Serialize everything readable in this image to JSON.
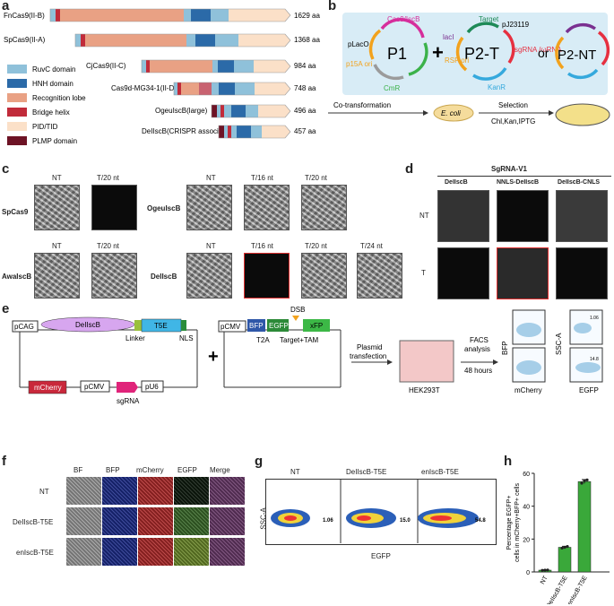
{
  "panels": {
    "a": "a",
    "b": "b",
    "c": "c",
    "d": "d",
    "e": "e",
    "f": "f",
    "g": "g",
    "h": "h"
  },
  "panel_a": {
    "proteins": [
      {
        "name": "FnCas9(II-B)",
        "length": "1629 aa"
      },
      {
        "name": "SpCas9(II-A)",
        "length": "1368 aa"
      },
      {
        "name": "CjCas9(II-C)",
        "length": "984 aa"
      },
      {
        "name": "Cas9d-MG34-1(II-D)",
        "length": "748 aa"
      },
      {
        "name": "OgeuIscB(large)",
        "length": "496 aa"
      },
      {
        "name": "DeIIscB(CRISPR associted)",
        "length": "457 aa"
      }
    ],
    "legend": [
      {
        "label": "RuvC domain",
        "color": "#8fc1da"
      },
      {
        "label": "HNH domain",
        "color": "#2b6aa8"
      },
      {
        "label": "Recognition lobe",
        "color": "#e9a184"
      },
      {
        "label": "Bridge helix",
        "color": "#c12b3a"
      },
      {
        "label": "PID/TID",
        "color": "#fbe0c8"
      },
      {
        "label": "PLMP domain",
        "color": "#6d1325"
      }
    ]
  },
  "panel_b": {
    "p1": "P1",
    "p2t": "P2-T",
    "p2nt": "P2-NT",
    "plus": "+",
    "or": "or",
    "plac": "pLacO",
    "cas9": "Cas9/IscB",
    "p15a": "p15A\nori",
    "cmr": "CmR",
    "laci": "lacI",
    "target": "Target",
    "pj": "pJ23119",
    "sgrna": "sgRNA\n/ωRNA",
    "rsf": "RSF\nori",
    "kanr": "KanR",
    "cotrans": "Co-transformation",
    "ecoli": "E. coli",
    "selection": "Selection",
    "chl": "Chl,Kan,IPTG"
  },
  "panel_c": {
    "nt": "NT",
    "t20": "T/20 nt",
    "t16": "T/16 nt",
    "t24": "T/24 nt",
    "spcas9": "SpCas9",
    "awaliscb": "AwaIscB",
    "ogeuiscb": "OgeuIscB",
    "deliscb": "DeIIscB"
  },
  "panel_d": {
    "title": "SgRNA-V1",
    "cols": [
      "DeIIscB",
      "NNLS-DeIIscB",
      "DeIIscB-CNLS"
    ],
    "rows": [
      "NT",
      "T"
    ]
  },
  "panel_e": {
    "pcag": "pCAG",
    "deliscb": "DeIIscB",
    "t5e": "T5E",
    "linker": "Linker",
    "nls": "NLS",
    "mcherry": "mCherry",
    "pcmv": "pCMV",
    "pu6": "pU6",
    "sgrna": "sgRNA",
    "pcmv2": "pCMV",
    "bfp": "BFP",
    "egfp": "EGFP",
    "xfp": "xFP",
    "t2a": "T2A",
    "dsb": "DSB",
    "target": "Target+TAM",
    "plasmid": "Plasmid",
    "transfection": "transfection",
    "hek": "HEK293T",
    "facs": "FACS",
    "analysis": "analysis",
    "hours": "48 hours",
    "bfp_axis": "BFP",
    "mcherry_axis": "mCherry",
    "ssc_axis": "SSC-A",
    "egfp_axis": "EGFP",
    "gate1": "1.06",
    "gate2": "14.8"
  },
  "panel_f": {
    "cols": [
      "BF",
      "BFP",
      "mCherry",
      "EGFP",
      "Merge"
    ],
    "rows": [
      "NT",
      "DeIIscB-T5E",
      "enIscB-T5E"
    ]
  },
  "panel_g": {
    "cols": [
      "NT",
      "DeIIscB-T5E",
      "enIscB-T5E"
    ],
    "values": [
      "1.06",
      "15.0",
      "54.8"
    ],
    "yaxis": "SSC-A",
    "xaxis": "EGFP"
  },
  "chart_data": {
    "type": "bar",
    "categories": [
      "NT",
      "DeIIscB-T5E",
      "enIscB-T5E"
    ],
    "values": [
      1.1,
      15.0,
      55.0
    ],
    "points": [
      [
        1.0,
        1.1,
        1.2
      ],
      [
        14.5,
        15.0,
        15.5
      ],
      [
        54.0,
        55.5,
        56.0
      ]
    ],
    "errors": [
      0.2,
      0.6,
      1.2
    ],
    "ylabel": "Percentage EGFP+\ncells in mCherry+BFP+ cells",
    "ylim": [
      0,
      60
    ],
    "yticks": [
      0,
      20,
      40,
      60
    ],
    "color": "#3aa83a"
  }
}
